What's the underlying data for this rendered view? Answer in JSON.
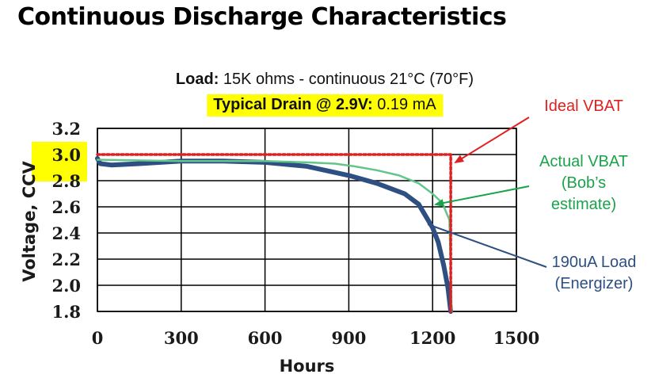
{
  "page_title": "Continuous Discharge Characteristics",
  "chart_data": {
    "type": "line",
    "subtitle_line1": {
      "bold": "Load:",
      "rest": " 15K ohms - continuous  21°C (70°F)"
    },
    "subtitle_line2": {
      "bold": "Typical Drain @ 2.9V:",
      "rest": " 0.19 mA"
    },
    "xlabel": "Hours",
    "ylabel": "Voltage, CCV",
    "xlim": [
      0,
      1500
    ],
    "ylim": [
      1.8,
      3.2
    ],
    "xticks": [
      0,
      300,
      600,
      900,
      1200,
      1500
    ],
    "yticks": [
      1.8,
      2.0,
      2.2,
      2.4,
      2.6,
      2.8,
      3.0,
      3.2
    ],
    "ytick_labels": [
      "1.8",
      "2.0",
      "2.2",
      "2.4",
      "2.6",
      "2.8",
      "3.0",
      "3.2"
    ],
    "highlighted_yticks": [
      "2.8",
      "3.0"
    ],
    "grid": true,
    "series": [
      {
        "name": "190uA Load (Energizer)",
        "color": "#2e4f82",
        "x": [
          0,
          10,
          50,
          150,
          300,
          450,
          600,
          750,
          900,
          1000,
          1100,
          1150,
          1200,
          1220,
          1240,
          1255,
          1265
        ],
        "y": [
          2.97,
          2.93,
          2.92,
          2.93,
          2.95,
          2.95,
          2.94,
          2.91,
          2.84,
          2.78,
          2.7,
          2.62,
          2.44,
          2.33,
          2.15,
          1.98,
          1.8
        ]
      },
      {
        "name": "Actual VBAT (Bob’s estimate)",
        "color": "#62c68a",
        "x": [
          0,
          300,
          600,
          750,
          850,
          920,
          1000,
          1080,
          1150,
          1200,
          1235,
          1260,
          1265,
          1268
        ],
        "y": [
          2.96,
          2.95,
          2.95,
          2.94,
          2.93,
          2.91,
          2.88,
          2.84,
          2.78,
          2.7,
          2.63,
          2.5,
          2.1,
          1.8
        ]
      },
      {
        "name": "Ideal VBAT",
        "color": "#e02020",
        "x": [
          0,
          1265,
          1265
        ],
        "y": [
          3.0,
          3.0,
          1.8
        ]
      }
    ],
    "annotations": [
      {
        "lines": [
          "Ideal VBAT"
        ],
        "color": "#e02020"
      },
      {
        "lines": [
          "Actual VBAT",
          "(Bob’s",
          "estimate)"
        ],
        "color": "#1aa34a"
      },
      {
        "lines": [
          "190uA Load",
          "(Energizer)"
        ],
        "color": "#2e4f82"
      }
    ],
    "highlight_color": "#ffff00"
  }
}
